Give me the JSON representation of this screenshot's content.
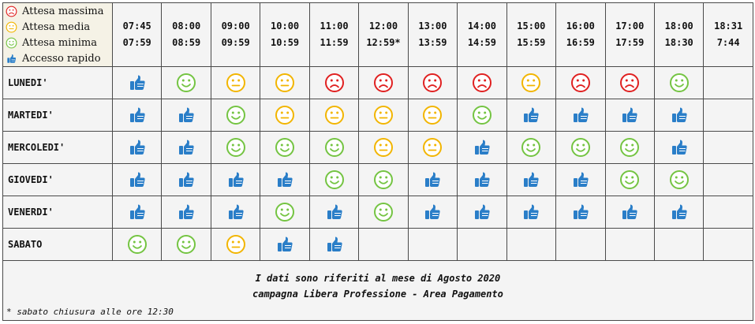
{
  "legend": [
    {
      "icon": "sad-face-icon",
      "color": "#e02020",
      "label": "Attesa massima"
    },
    {
      "icon": "neutral-face-icon",
      "color": "#f2b500",
      "label": "Attesa media"
    },
    {
      "icon": "happy-face-icon",
      "color": "#74c442",
      "label": "Attesa minima"
    },
    {
      "icon": "thumbs-up-icon",
      "color": "#2a7ec8",
      "label": "Accesso rapido"
    }
  ],
  "time_slots": [
    {
      "start": "07:45",
      "end": "07:59"
    },
    {
      "start": "08:00",
      "end": "08:59"
    },
    {
      "start": "09:00",
      "end": "09:59"
    },
    {
      "start": "10:00",
      "end": "10:59"
    },
    {
      "start": "11:00",
      "end": "11:59"
    },
    {
      "start": "12:00",
      "end": "12:59*"
    },
    {
      "start": "13:00",
      "end": "13:59"
    },
    {
      "start": "14:00",
      "end": "14:59"
    },
    {
      "start": "15:00",
      "end": "15:59"
    },
    {
      "start": "16:00",
      "end": "16:59"
    },
    {
      "start": "17:00",
      "end": "17:59"
    },
    {
      "start": "18:00",
      "end": "18:30"
    },
    {
      "start": "18:31",
      "end": "7:44"
    }
  ],
  "days": [
    {
      "name": "LUNEDI'",
      "cells": [
        "thumb",
        "happy",
        "neutral",
        "neutral",
        "sad",
        "sad",
        "sad",
        "sad",
        "neutral",
        "sad",
        "sad",
        "happy",
        ""
      ]
    },
    {
      "name": "MARTEDI'",
      "cells": [
        "thumb",
        "thumb",
        "happy",
        "neutral",
        "neutral",
        "neutral",
        "neutral",
        "happy",
        "thumb",
        "thumb",
        "thumb",
        "thumb",
        ""
      ]
    },
    {
      "name": "MERCOLEDI'",
      "cells": [
        "thumb",
        "thumb",
        "happy",
        "happy",
        "happy",
        "neutral",
        "neutral",
        "thumb",
        "happy",
        "happy",
        "happy",
        "thumb",
        ""
      ]
    },
    {
      "name": "GIOVEDI'",
      "cells": [
        "thumb",
        "thumb",
        "thumb",
        "thumb",
        "happy",
        "happy",
        "thumb",
        "thumb",
        "thumb",
        "thumb",
        "happy",
        "happy",
        ""
      ]
    },
    {
      "name": "VENERDI'",
      "cells": [
        "thumb",
        "thumb",
        "thumb",
        "happy",
        "thumb",
        "happy",
        "thumb",
        "thumb",
        "thumb",
        "thumb",
        "thumb",
        "thumb",
        ""
      ]
    },
    {
      "name": "SABATO",
      "cells": [
        "happy",
        "happy",
        "neutral",
        "thumb",
        "thumb",
        "",
        "",
        "",
        "",
        "",
        "",
        "",
        ""
      ]
    }
  ],
  "footer": {
    "line1": "I dati sono riferiti al mese di Agosto 2020",
    "line2": "campagna Libera Professione - Area Pagamento",
    "note": "* sabato chiusura alle ore 12:30"
  },
  "colors": {
    "sad": "#e02020",
    "neutral": "#f2b500",
    "happy": "#74c442",
    "thumb": "#2a7ec8"
  }
}
